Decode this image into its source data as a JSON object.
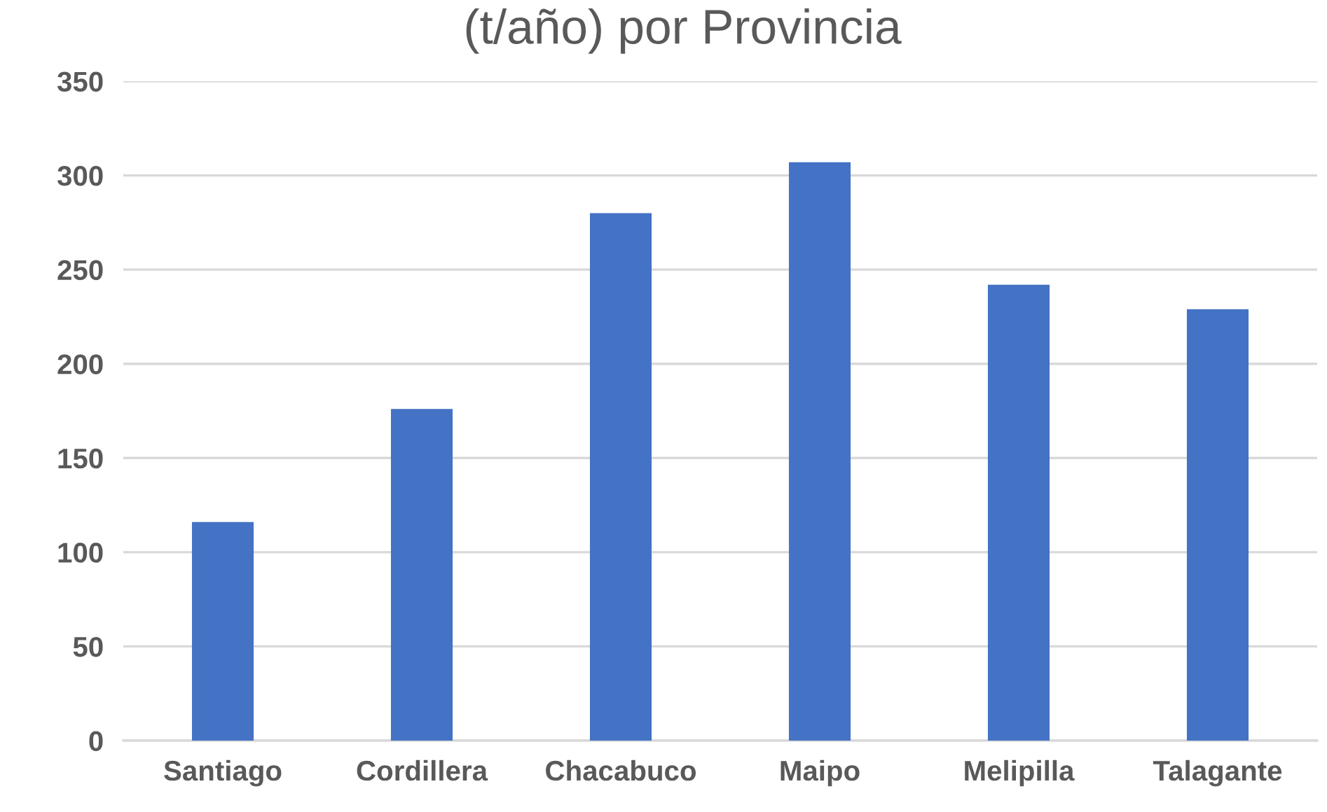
{
  "chart_data": {
    "type": "bar",
    "title": "(t/año) por Provincia",
    "categories": [
      "Santiago",
      "Cordillera",
      "Chacabuco",
      "Maipo",
      "Melipilla",
      "Talagante"
    ],
    "values": [
      116,
      176,
      280,
      307,
      242,
      229
    ],
    "color": "#4472c4",
    "ylim": [
      0,
      350
    ],
    "yticks": [
      0,
      50,
      100,
      150,
      200,
      250,
      300,
      350
    ],
    "grid": "y"
  }
}
